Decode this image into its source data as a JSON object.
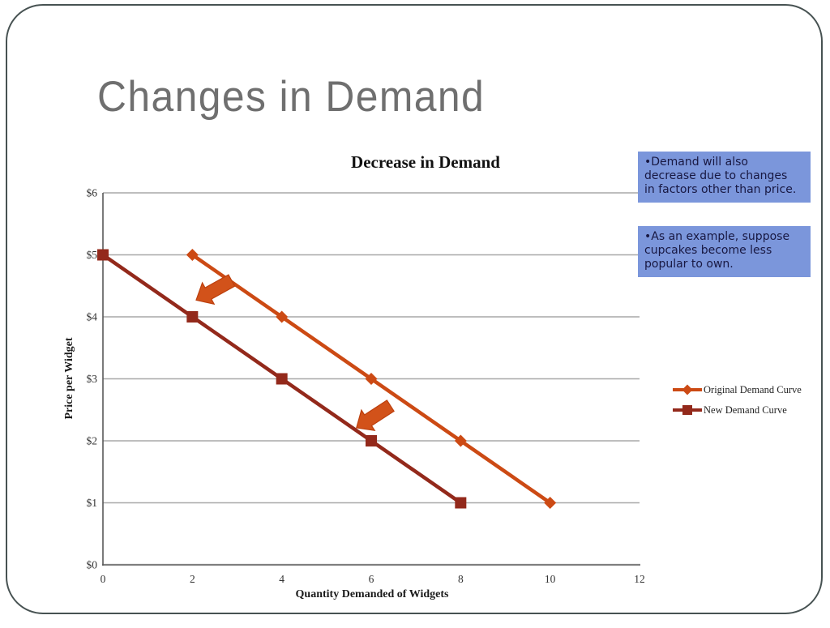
{
  "slide": {
    "title": "Changes in Demand"
  },
  "callouts": [
    {
      "name": "demand-decrease-note",
      "lines": [
        "•Demand will also",
        "decrease due to changes",
        "in factors other than price."
      ]
    },
    {
      "name": "cupcake-example-note",
      "lines": [
        "•As an example, suppose",
        "cupcakes become less",
        "popular to own."
      ]
    }
  ],
  "chart_data": {
    "type": "line",
    "title": "Decrease in Demand",
    "xlabel": "Quantity Demanded of Widgets",
    "ylabel": "Price per Widget",
    "xlim": [
      0,
      12
    ],
    "ylim": [
      0,
      6
    ],
    "x_ticks": [
      "0",
      "2",
      "4",
      "6",
      "8",
      "10",
      "12"
    ],
    "x_tick_values": [
      0,
      2,
      4,
      6,
      8,
      10,
      12
    ],
    "y_ticks": [
      "$0",
      "$1",
      "$2",
      "$3",
      "$4",
      "$5",
      "$6"
    ],
    "y_tick_values": [
      0,
      1,
      2,
      3,
      4,
      5,
      6
    ],
    "grid": "horizontal",
    "legend_position": "right-middle",
    "series": [
      {
        "name": "Original Demand Curve",
        "marker": "diamond",
        "color": "#cc4a14",
        "points": [
          [
            2,
            5
          ],
          [
            4,
            4
          ],
          [
            6,
            3
          ],
          [
            8,
            2
          ],
          [
            10,
            1
          ]
        ]
      },
      {
        "name": "New Demand Curve",
        "marker": "square",
        "color": "#93291b",
        "points": [
          [
            0,
            5
          ],
          [
            2,
            4
          ],
          [
            4,
            3
          ],
          [
            6,
            2
          ],
          [
            8,
            1
          ]
        ]
      }
    ],
    "annotations": [
      {
        "type": "block-arrow",
        "meaning": "leftward-shift-arrow",
        "x": 2.085,
        "y": 4.27,
        "rotation": -29
      },
      {
        "type": "block-arrow",
        "meaning": "leftward-shift-arrow",
        "x": 5.67,
        "y": 2.21,
        "rotation": -33
      }
    ]
  },
  "colors": {
    "accent_orange": "#cc4a14",
    "dark_red": "#93291b",
    "arrow_fill": "#d2521a",
    "arrow_stroke": "#bc3f0d",
    "callout_bg": "#7b96db",
    "callout_text": "#181842",
    "slide_border": "#475252",
    "title_gray": "#6f6f6f"
  }
}
